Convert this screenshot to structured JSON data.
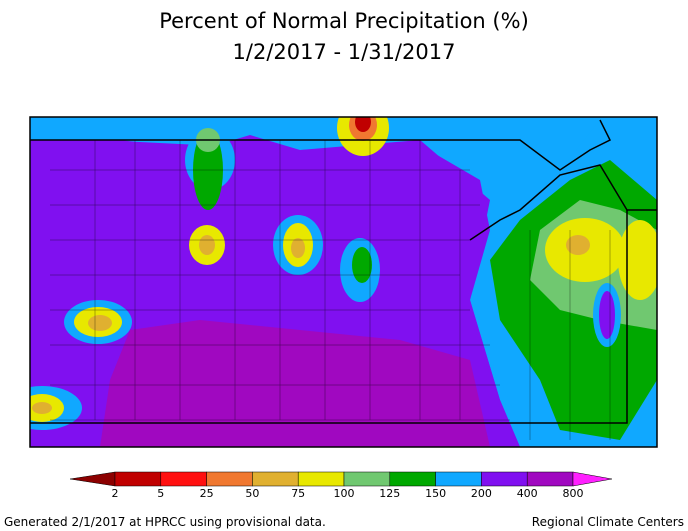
{
  "title": [
    "Percent of Normal Precipitation (%)",
    "1/2/2017 - 1/31/2017"
  ],
  "legend": {
    "ticks": [
      2,
      5,
      25,
      50,
      75,
      100,
      125,
      150,
      200,
      400,
      800
    ],
    "colors": [
      "#8c0000",
      "#c00000",
      "#ff1010",
      "#f07830",
      "#e0b030",
      "#e8e800",
      "#70c870",
      "#00a800",
      "#10a8ff",
      "#8010f0",
      "#a008c0",
      "#ff20ff"
    ]
  },
  "footer": {
    "left": "Generated 2/1/2017 at HPRCC using provisional data.",
    "right": "Regional Climate Centers"
  }
}
